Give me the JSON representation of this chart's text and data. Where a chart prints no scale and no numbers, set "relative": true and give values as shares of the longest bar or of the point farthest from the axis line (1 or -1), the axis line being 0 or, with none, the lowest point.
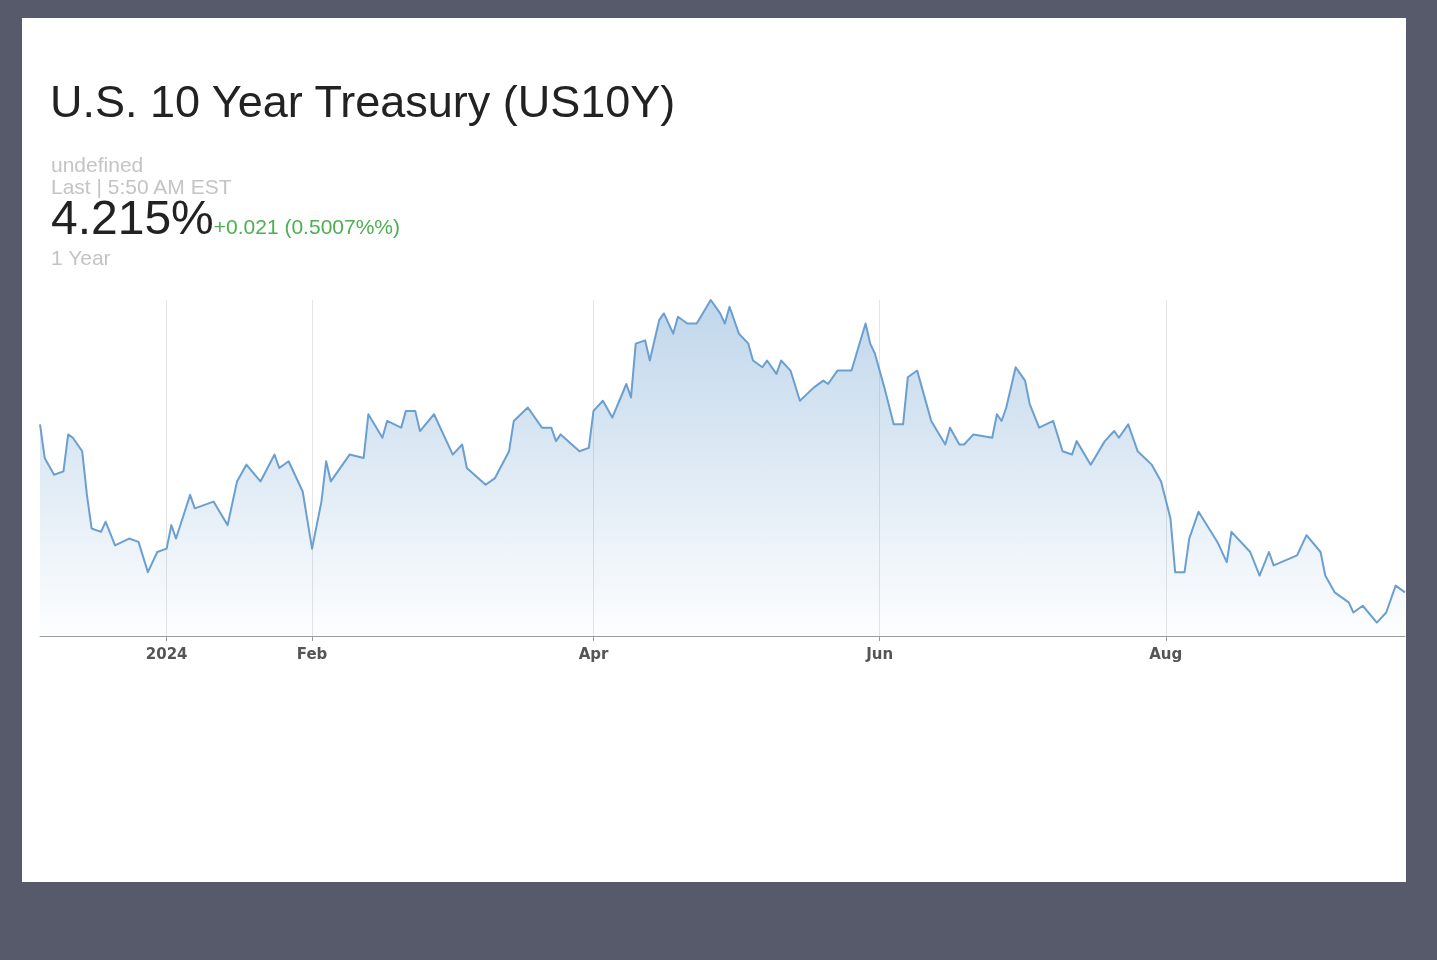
{
  "chart_data": {
    "type": "area",
    "title": "U.S. 10 Year Treasury (US10Y)",
    "annotations": [
      "undefined",
      "Last | 5:50 AM EST",
      "4.215%",
      "+0.021 (0.5007%%)",
      "1 Year"
    ],
    "relative": true,
    "xlim": [
      "2023-12-05",
      "2024-09-21"
    ],
    "xticks": [
      {
        "value": "2024-01-01",
        "label": "2024"
      },
      {
        "value": "2024-02-01",
        "label": "Feb"
      },
      {
        "value": "2024-04-01",
        "label": "Apr"
      },
      {
        "value": "2024-06-01",
        "label": "Jun"
      },
      {
        "value": "2024-08-01",
        "label": "Aug"
      }
    ],
    "grid": "x",
    "marker": "none",
    "line_style": "solid",
    "x": [
      "2023-12-05",
      "2023-12-06",
      "2023-12-08",
      "2023-12-10",
      "2023-12-11",
      "2023-12-12",
      "2023-12-14",
      "2023-12-15",
      "2023-12-16",
      "2023-12-18",
      "2023-12-19",
      "2023-12-21",
      "2023-12-24",
      "2023-12-26",
      "2023-12-28",
      "2023-12-30",
      "2024-01-01",
      "2024-01-02",
      "2024-01-03",
      "2024-01-06",
      "2024-01-07",
      "2024-01-11",
      "2024-01-14",
      "2024-01-16",
      "2024-01-18",
      "2024-01-21",
      "2024-01-24",
      "2024-01-25",
      "2024-01-27",
      "2024-01-30",
      "2024-02-01",
      "2024-02-03",
      "2024-02-04",
      "2024-02-05",
      "2024-02-09",
      "2024-02-12",
      "2024-02-13",
      "2024-02-16",
      "2024-02-17",
      "2024-02-20",
      "2024-02-21",
      "2024-02-23",
      "2024-02-24",
      "2024-02-27",
      "2024-03-02",
      "2024-03-04",
      "2024-03-05",
      "2024-03-09",
      "2024-03-11",
      "2024-03-14",
      "2024-03-15",
      "2024-03-18",
      "2024-03-21",
      "2024-03-23",
      "2024-03-24",
      "2024-03-25",
      "2024-03-29",
      "2024-03-31",
      "2024-04-01",
      "2024-04-03",
      "2024-04-05",
      "2024-04-08",
      "2024-04-09",
      "2024-04-10",
      "2024-04-12",
      "2024-04-13",
      "2024-04-15",
      "2024-04-16",
      "2024-04-18",
      "2024-04-19",
      "2024-04-21",
      "2024-04-23",
      "2024-04-26",
      "2024-04-28",
      "2024-04-29",
      "2024-04-30",
      "2024-05-02",
      "2024-05-04",
      "2024-05-05",
      "2024-05-07",
      "2024-05-08",
      "2024-05-10",
      "2024-05-11",
      "2024-05-13",
      "2024-05-15",
      "2024-05-18",
      "2024-05-20",
      "2024-05-21",
      "2024-05-23",
      "2024-05-26",
      "2024-05-29",
      "2024-05-30",
      "2024-05-31",
      "2024-06-02",
      "2024-06-04",
      "2024-06-06",
      "2024-06-07",
      "2024-06-09",
      "2024-06-10",
      "2024-06-12",
      "2024-06-15",
      "2024-06-16",
      "2024-06-18",
      "2024-06-19",
      "2024-06-21",
      "2024-06-25",
      "2024-06-26",
      "2024-06-27",
      "2024-06-28",
      "2024-06-30",
      "2024-07-02",
      "2024-07-03",
      "2024-07-05",
      "2024-07-08",
      "2024-07-10",
      "2024-07-12",
      "2024-07-13",
      "2024-07-16",
      "2024-07-19",
      "2024-07-21",
      "2024-07-22",
      "2024-07-24",
      "2024-07-26",
      "2024-07-29",
      "2024-07-31",
      "2024-08-02",
      "2024-08-03",
      "2024-08-05",
      "2024-08-06",
      "2024-08-08",
      "2024-08-12",
      "2024-08-14",
      "2024-08-15",
      "2024-08-19",
      "2024-08-21",
      "2024-08-23",
      "2024-08-24",
      "2024-08-29",
      "2024-08-31",
      "2024-09-03",
      "2024-09-04",
      "2024-09-06",
      "2024-09-09",
      "2024-09-10",
      "2024-09-12",
      "2024-09-15",
      "2024-09-17",
      "2024-09-19",
      "2024-09-21"
    ],
    "series": [
      {
        "color": "#6a9fd0",
        "values": [
          0.63,
          0.53,
          0.48,
          0.49,
          0.6,
          0.59,
          0.55,
          0.42,
          0.32,
          0.31,
          0.34,
          0.27,
          0.29,
          0.28,
          0.19,
          0.25,
          0.26,
          0.33,
          0.29,
          0.42,
          0.38,
          0.4,
          0.33,
          0.46,
          0.51,
          0.46,
          0.54,
          0.5,
          0.52,
          0.43,
          0.26,
          0.4,
          0.52,
          0.46,
          0.54,
          0.53,
          0.66,
          0.59,
          0.64,
          0.62,
          0.67,
          0.67,
          0.61,
          0.66,
          0.54,
          0.57,
          0.5,
          0.45,
          0.47,
          0.55,
          0.64,
          0.68,
          0.62,
          0.62,
          0.58,
          0.6,
          0.55,
          0.56,
          0.67,
          0.7,
          0.65,
          0.75,
          0.71,
          0.87,
          0.88,
          0.82,
          0.94,
          0.96,
          0.9,
          0.95,
          0.93,
          0.93,
          1,
          0.96,
          0.93,
          0.98,
          0.9,
          0.87,
          0.82,
          0.8,
          0.82,
          0.78,
          0.82,
          0.79,
          0.7,
          0.74,
          0.76,
          0.75,
          0.79,
          0.79,
          0.93,
          0.87,
          0.84,
          0.74,
          0.63,
          0.63,
          0.77,
          0.79,
          0.74,
          0.64,
          0.57,
          0.62,
          0.57,
          0.57,
          0.6,
          0.59,
          0.66,
          0.64,
          0.68,
          0.8,
          0.76,
          0.69,
          0.62,
          0.64,
          0.55,
          0.54,
          0.58,
          0.51,
          0.58,
          0.61,
          0.59,
          0.63,
          0.55,
          0.51,
          0.46,
          0.35,
          0.19,
          0.19,
          0.29,
          0.37,
          0.28,
          0.22,
          0.31,
          0.25,
          0.18,
          0.25,
          0.21,
          0.24,
          0.3,
          0.25,
          0.18,
          0.13,
          0.1,
          0.07,
          0.09,
          0.04,
          0.07,
          0.15,
          0.13
        ]
      }
    ]
  }
}
